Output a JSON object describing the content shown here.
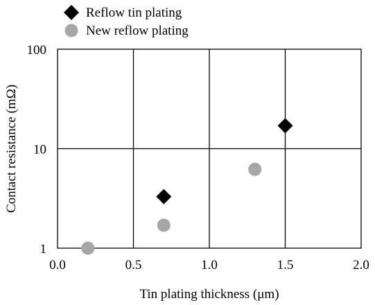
{
  "chart_data": {
    "type": "scatter",
    "title": "",
    "xlabel": "Tin plating thickness  (μm)",
    "ylabel": "Contact resistance  (mΩ)",
    "xlim": [
      0.0,
      2.0
    ],
    "ylim": [
      1,
      100
    ],
    "yscale": "log",
    "x_ticks": [
      "0.0",
      "0.5",
      "1.0",
      "1.5",
      "2.0"
    ],
    "y_ticks": [
      "1",
      "10",
      "100"
    ],
    "grid": true,
    "legend_position": "top-left, above plot",
    "series": [
      {
        "name": "Reflow tin plating",
        "marker": "diamond",
        "color": "#000000",
        "points": [
          {
            "x": 0.7,
            "y": 3.3
          },
          {
            "x": 1.5,
            "y": 17
          }
        ]
      },
      {
        "name": "New reflow plating",
        "marker": "circle",
        "color": "#a6a6a6",
        "points": [
          {
            "x": 0.2,
            "y": 1.0
          },
          {
            "x": 0.7,
            "y": 1.7
          },
          {
            "x": 1.3,
            "y": 6.2
          }
        ]
      }
    ]
  }
}
